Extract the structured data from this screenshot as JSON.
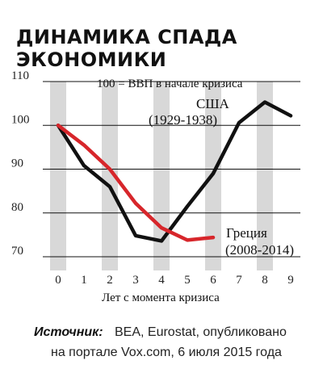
{
  "chart_data": {
    "type": "line",
    "title_lines": [
      "ДИНАМИКА СПАДА",
      "ЭКОНОМИКИ"
    ],
    "subtitle": "100 = ВВП в начале кризиса",
    "xlabel": "Лет с момента кризиса",
    "ylabel": "",
    "x": [
      0,
      1,
      2,
      3,
      4,
      5,
      6,
      7,
      8,
      9
    ],
    "xlim": [
      0,
      9
    ],
    "ylim": [
      70,
      110
    ],
    "y_ticks": [
      110,
      100,
      90,
      80,
      70
    ],
    "grid": true,
    "series": [
      {
        "name_lines": [
          "США",
          "(1929-1938)"
        ],
        "color": "#111111",
        "x": [
          0,
          1,
          2,
          3,
          4,
          5,
          6,
          7,
          8,
          9
        ],
        "values": [
          100,
          90.8,
          86,
          74.8,
          73.6,
          81.5,
          89,
          100.6,
          105.3,
          102.2
        ]
      },
      {
        "name_lines": [
          "Греция",
          "(2008-2014)"
        ],
        "color": "#d7262b",
        "x": [
          0,
          1,
          2,
          3,
          4,
          5,
          6
        ],
        "values": [
          100,
          95.5,
          90,
          82.2,
          76.6,
          73.8,
          74.4
        ]
      }
    ]
  },
  "source": {
    "label": "Источник:",
    "line1": "BEA, Eurostat, опубликовано",
    "line2": "на портале Vox.com, 6 июля 2015 года"
  }
}
